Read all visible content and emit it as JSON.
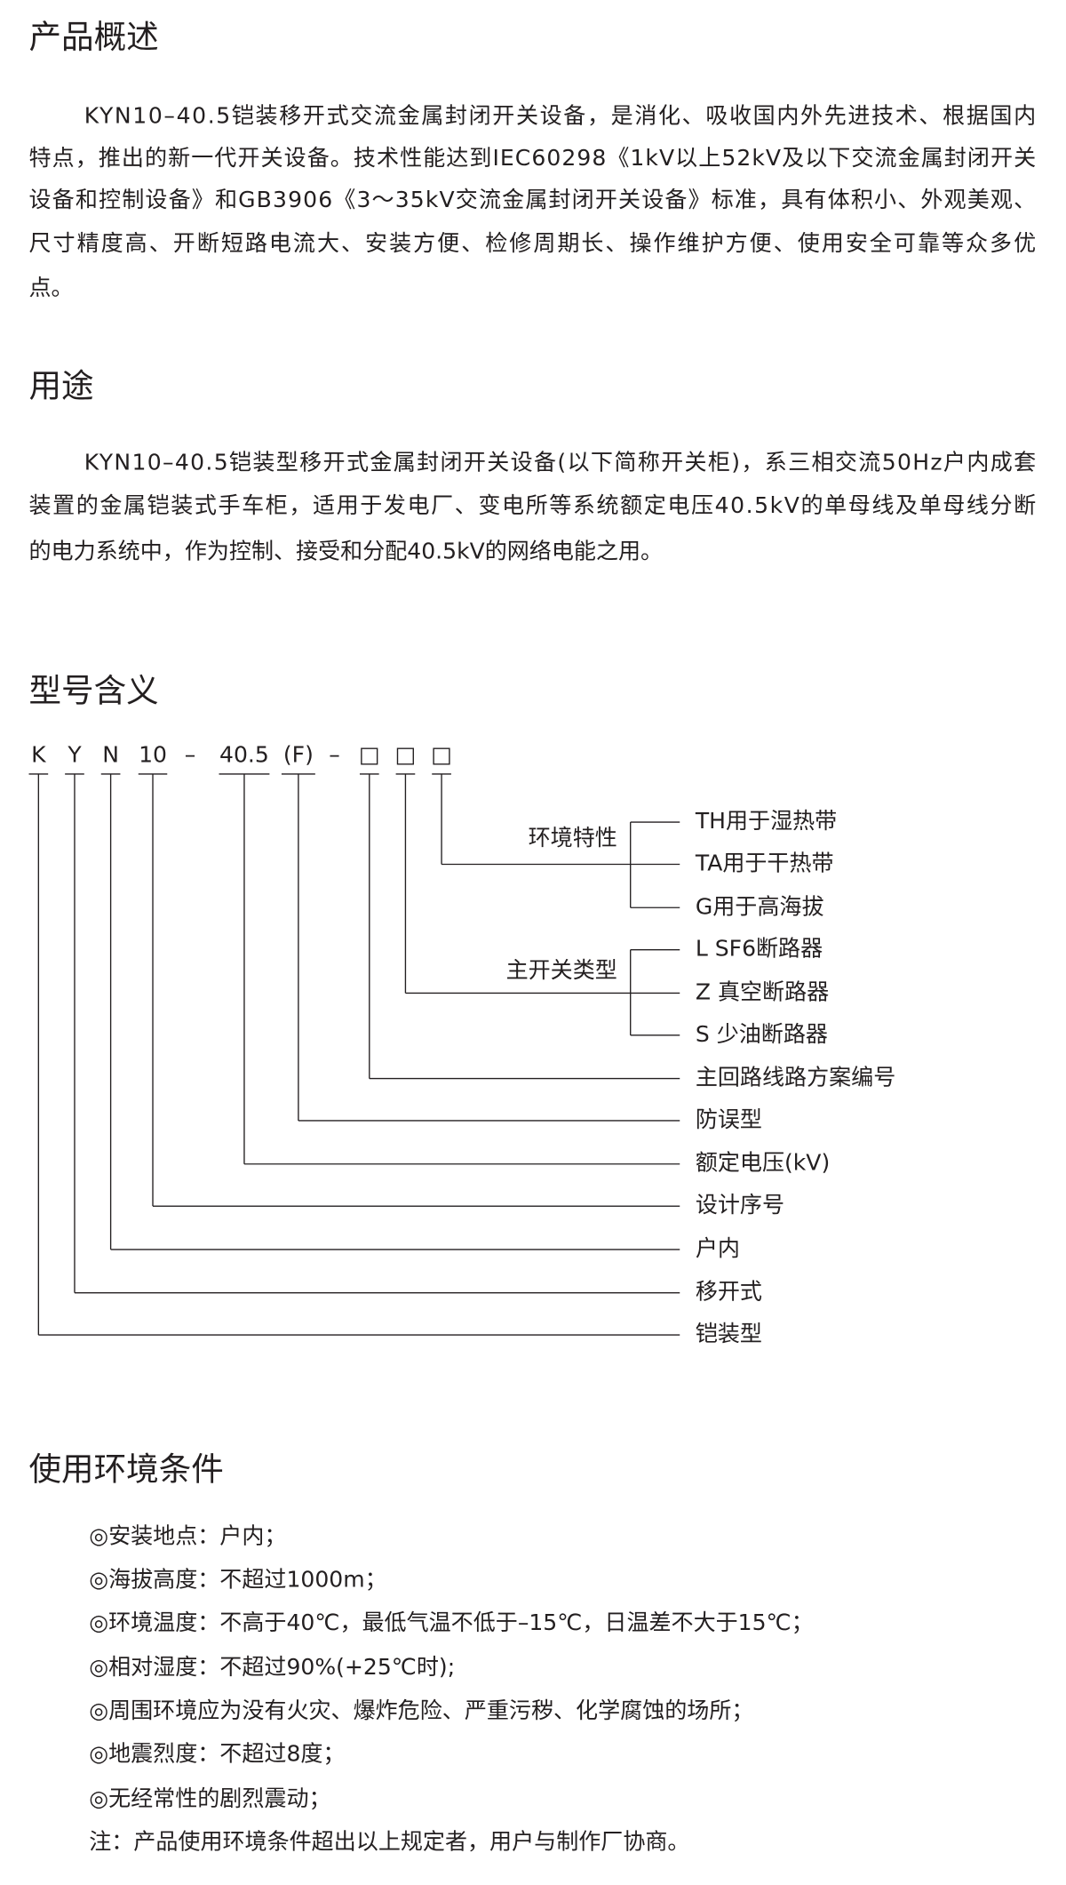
{
  "overview": {
    "title": "产品概述",
    "lines": [
      "KYN10–40.5铠装移开式交流金属封闭开关设备，是消化、吸收国内外先进技术、根据国内",
      "特点，推出的新一代开关设备。技术性能达到IEC60298《1kV以上52kV及以下交流金属封闭开关",
      "设备和控制设备》和GB3906《3～35kV交流金属封闭开关设备》标准，具有体积小、外观美观、",
      "尺寸精度高、开断短路电流大、安装方便、检修周期长、操作维护方便、使用安全可靠等众多优",
      "点。"
    ]
  },
  "usage": {
    "title": "用途",
    "lines": [
      "KYN10–40.5铠装型移开式金属封闭开关设备(以下简称开关柜)，系三相交流50Hz户内成套",
      "装置的金属铠装式手车柜，适用于发电厂、变电所等系统额定电压40.5kV的单母线及单母线分断",
      "的电力系统中，作为控制、接受和分配40.5kV的网络电能之用。"
    ]
  },
  "model": {
    "title": "型号含义",
    "code": [
      "K",
      "Y",
      "N",
      "10",
      "–",
      "40.5",
      "(F)",
      "–",
      "□",
      "□",
      "□"
    ],
    "groups": [
      {
        "label": "环境特性",
        "options": [
          "TH用于湿热带",
          "TA用于干热带",
          "G用于高海拔"
        ]
      },
      {
        "label": "主开关类型",
        "options": [
          "L SF6断路器",
          "Z 真空断路器",
          "S 少油断路器"
        ]
      }
    ],
    "items": [
      "主回路线路方案编号",
      "防误型",
      "额定电压(kV)",
      "设计序号",
      "户内",
      "移开式",
      "铠装型"
    ]
  },
  "environment": {
    "title": "使用环境条件",
    "items": [
      "◎安装地点：户内；",
      "◎海拔高度：不超过1000m；",
      "◎环境温度：不高于40℃，最低气温不低于–15℃，日温差不大于15℃；",
      "◎相对湿度：不超过90%(+25℃时);",
      "◎周围环境应为没有火灾、爆炸危险、严重污秽、化学腐蚀的场所；",
      "◎地震烈度：不超过8度；",
      "◎无经常性的剧烈震动；"
    ],
    "note": "注：产品使用环境条件超出以上规定者，用户与制作厂协商。"
  }
}
